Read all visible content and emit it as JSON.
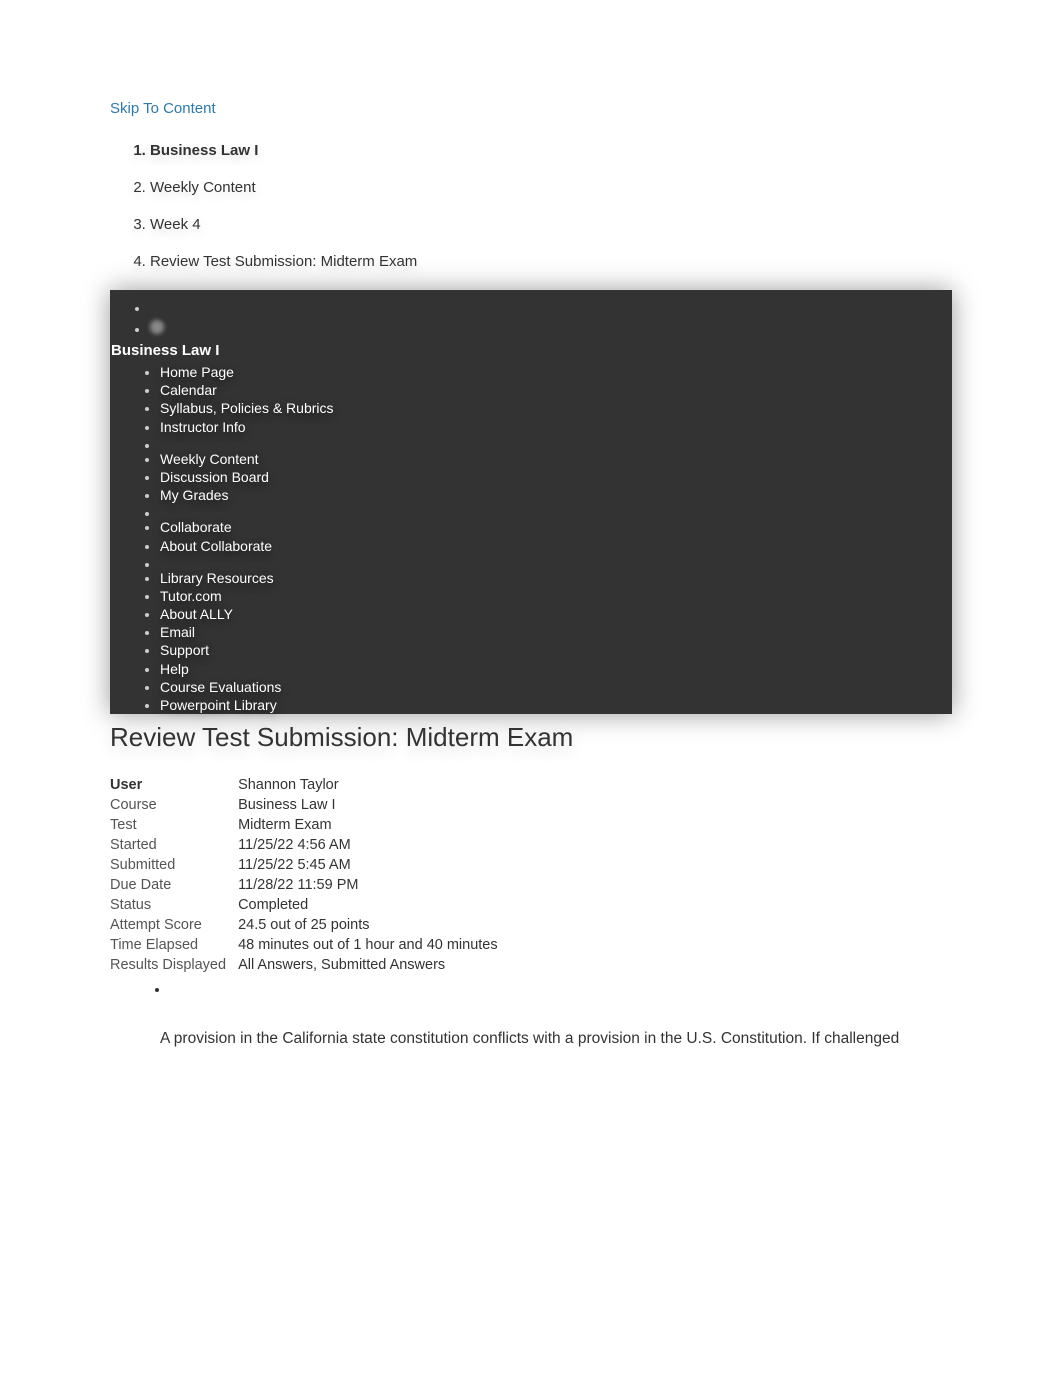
{
  "skip_link": "Skip To Content",
  "breadcrumb": [
    "Business Law I",
    "Weekly Content",
    "Week 4",
    "Review Test Submission: Midterm Exam"
  ],
  "course_menu": {
    "title": "Business Law I",
    "groups": [
      [
        "Home Page",
        "Calendar",
        "Syllabus, Policies & Rubrics",
        "Instructor Info"
      ],
      [
        "Weekly Content",
        "Discussion Board",
        "My Grades"
      ],
      [
        "Collaborate",
        "About Collaborate"
      ],
      [
        "Library Resources",
        "Tutor.com",
        "About ALLY",
        "Email",
        "Support",
        "Help",
        "Course Evaluations",
        "Powerpoint Library"
      ]
    ]
  },
  "page_title": "Review Test Submission: Midterm Exam",
  "details": {
    "user_label": "User",
    "user_value": "Shannon Taylor",
    "course_label": "Course",
    "course_value": "Business Law I",
    "test_label": "Test",
    "test_value": "Midterm Exam",
    "started_label": "Started",
    "started_value": "11/25/22 4:56 AM",
    "submitted_label": "Submitted",
    "submitted_value": "11/25/22 5:45 AM",
    "due_label": "Due Date",
    "due_value": "11/28/22 11:59 PM",
    "status_label": "Status",
    "status_value": "Completed",
    "score_label": "Attempt Score",
    "score_value": "24.5 out of 25 points",
    "elapsed_label": "Time Elapsed",
    "elapsed_value": "48 minutes out of 1 hour and 40 minutes",
    "results_label": "Results Displayed",
    "results_value": "All Answers, Submitted Answers"
  },
  "question": "A provision in the California state constitution conflicts with a provision in the U.S. Constitution. If challenged"
}
